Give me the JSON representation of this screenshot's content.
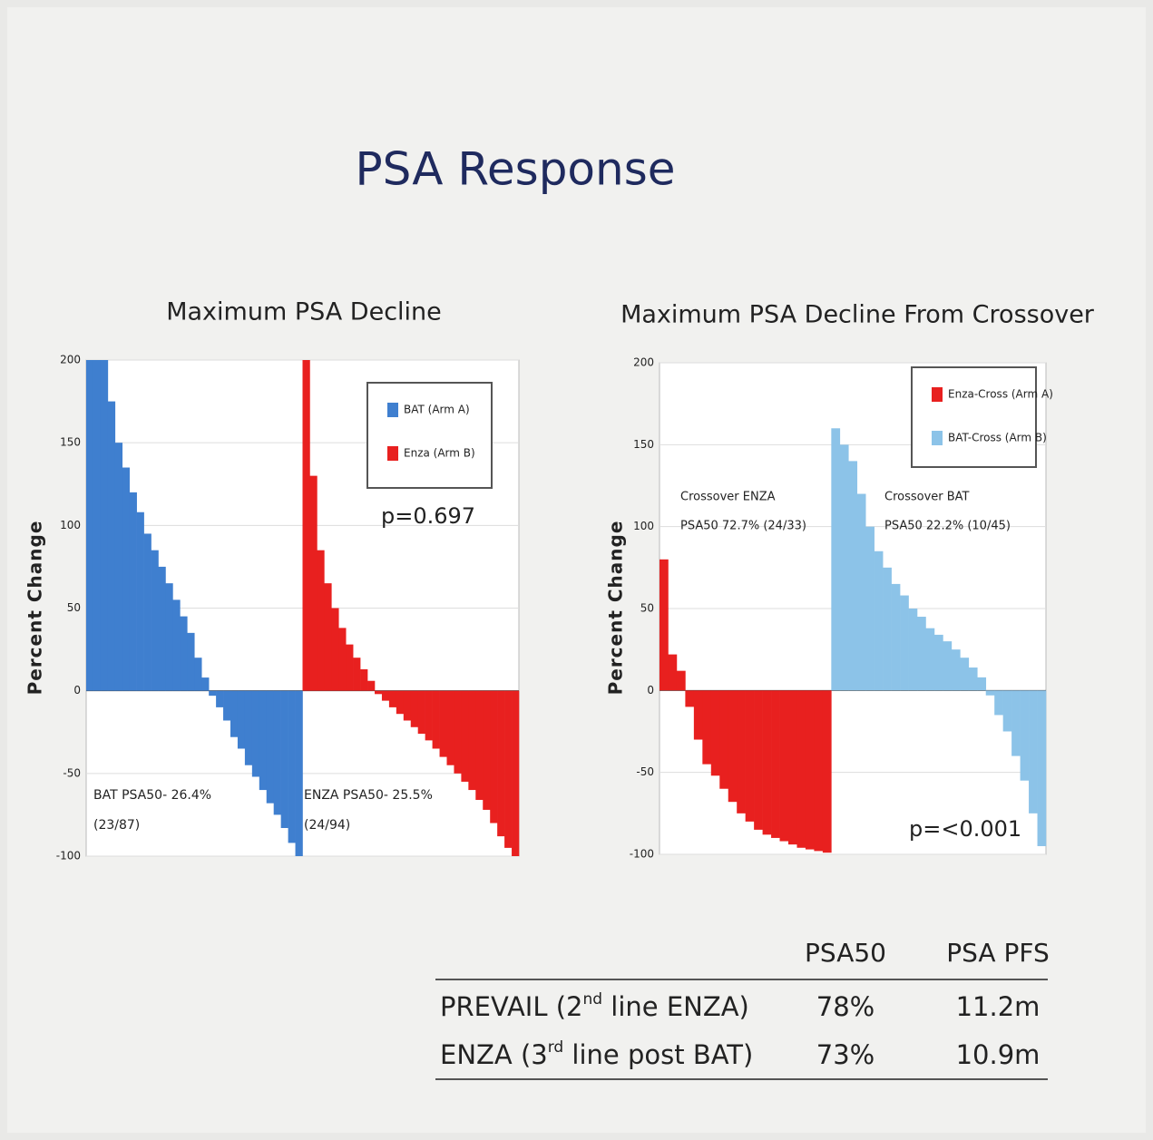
{
  "title": "PSA Response",
  "chart_data": [
    {
      "type": "waterfall",
      "title": "Maximum PSA Decline",
      "y_label": "Percent Change",
      "ylim": [
        -100,
        200
      ],
      "yticks": [
        200,
        150,
        100,
        50,
        0,
        -50,
        -100
      ],
      "grid": true,
      "legend_position": "upper right",
      "series": [
        {
          "name": "BAT (Arm A)",
          "color": "#3f7fcf",
          "values": [
            200,
            200,
            200,
            175,
            150,
            135,
            120,
            108,
            95,
            85,
            75,
            65,
            55,
            45,
            35,
            20,
            8,
            -3,
            -10,
            -18,
            -28,
            -35,
            -45,
            -52,
            -60,
            -68,
            -75,
            -83,
            -92,
            -100
          ]
        },
        {
          "name": "Enza (Arm B)",
          "color": "#e8201f",
          "values": [
            200,
            130,
            85,
            65,
            50,
            38,
            28,
            20,
            13,
            6,
            -2,
            -6,
            -10,
            -14,
            -18,
            -22,
            -26,
            -30,
            -35,
            -40,
            -45,
            -50,
            -55,
            -60,
            -66,
            -72,
            -80,
            -88,
            -95,
            -100
          ]
        }
      ],
      "annotations": [
        "p=0.697",
        "BAT PSA50- 26.4%",
        "(23/87)",
        "ENZA PSA50- 25.5%",
        "(24/94)"
      ]
    },
    {
      "type": "waterfall",
      "title": "Maximum PSA Decline From Crossover",
      "y_label": "Percent Change",
      "ylim": [
        -100,
        200
      ],
      "yticks": [
        200,
        150,
        100,
        50,
        0,
        -50,
        -100
      ],
      "grid": true,
      "legend_position": "upper right",
      "series": [
        {
          "name": "Enza-Cross (Arm A)",
          "color": "#e8201f",
          "values": [
            80,
            22,
            12,
            -10,
            -30,
            -45,
            -52,
            -60,
            -68,
            -75,
            -80,
            -85,
            -88,
            -90,
            -92,
            -94,
            -96,
            -97,
            -98,
            -99
          ]
        },
        {
          "name": "BAT-Cross (Arm B)",
          "color": "#8cc3e8",
          "values": [
            160,
            150,
            140,
            120,
            100,
            85,
            75,
            65,
            58,
            50,
            45,
            38,
            34,
            30,
            25,
            20,
            14,
            8,
            -3,
            -15,
            -25,
            -40,
            -55,
            -75,
            -95
          ]
        }
      ],
      "annotations": [
        "Crossover ENZA",
        "PSA50 72.7% (24/33)",
        "Crossover BAT",
        "PSA50 22.2% (10/45)",
        "p=<0.001"
      ]
    }
  ],
  "table": {
    "header": [
      "PSA50",
      "PSA PFS"
    ],
    "rows": [
      {
        "label": [
          "PREVAIL (2",
          "nd",
          " line ENZA)"
        ],
        "cells": [
          "78%",
          "11.2m"
        ]
      },
      {
        "label": [
          "ENZA (3",
          "rd",
          " line post BAT)"
        ],
        "cells": [
          "73%",
          "10.9m"
        ]
      }
    ]
  }
}
